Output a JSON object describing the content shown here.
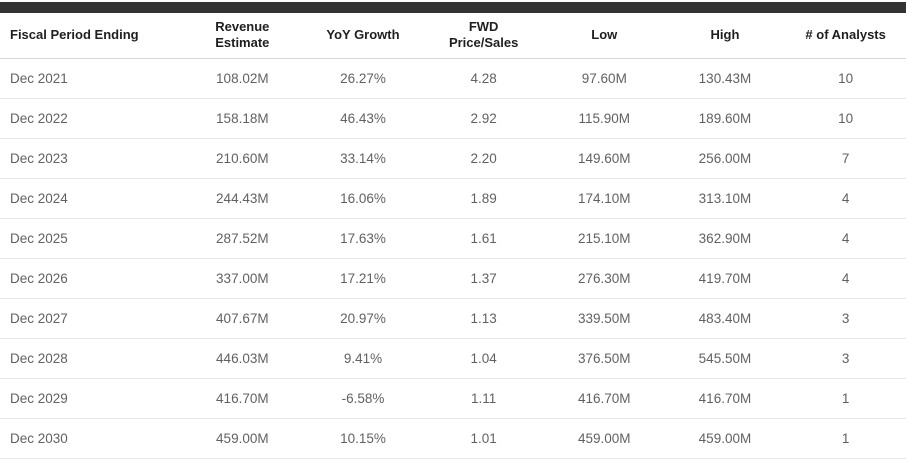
{
  "colors": {
    "top_bar": "#333333",
    "background": "#ffffff",
    "header_text": "#1f1f1f",
    "cell_text": "#616161",
    "header_border": "#d6d6d6",
    "row_border": "#e7e7e7"
  },
  "table": {
    "columns": [
      {
        "id": "fiscal_period_ending",
        "label": "Fiscal Period Ending",
        "align": "left"
      },
      {
        "id": "revenue_estimate",
        "label": "Revenue\nEstimate",
        "align": "center"
      },
      {
        "id": "yoy_growth",
        "label": "YoY Growth",
        "align": "center"
      },
      {
        "id": "fwd_price_sales",
        "label": "FWD\nPrice/Sales",
        "align": "center"
      },
      {
        "id": "low",
        "label": "Low",
        "align": "center"
      },
      {
        "id": "high",
        "label": "High",
        "align": "center"
      },
      {
        "id": "num_analysts",
        "label": "# of Analysts",
        "align": "center"
      }
    ],
    "rows": [
      [
        "Dec 2021",
        "108.02M",
        "26.27%",
        "4.28",
        "97.60M",
        "130.43M",
        "10"
      ],
      [
        "Dec 2022",
        "158.18M",
        "46.43%",
        "2.92",
        "115.90M",
        "189.60M",
        "10"
      ],
      [
        "Dec 2023",
        "210.60M",
        "33.14%",
        "2.20",
        "149.60M",
        "256.00M",
        "7"
      ],
      [
        "Dec 2024",
        "244.43M",
        "16.06%",
        "1.89",
        "174.10M",
        "313.10M",
        "4"
      ],
      [
        "Dec 2025",
        "287.52M",
        "17.63%",
        "1.61",
        "215.10M",
        "362.90M",
        "4"
      ],
      [
        "Dec 2026",
        "337.00M",
        "17.21%",
        "1.37",
        "276.30M",
        "419.70M",
        "4"
      ],
      [
        "Dec 2027",
        "407.67M",
        "20.97%",
        "1.13",
        "339.50M",
        "483.40M",
        "3"
      ],
      [
        "Dec 2028",
        "446.03M",
        "9.41%",
        "1.04",
        "376.50M",
        "545.50M",
        "3"
      ],
      [
        "Dec 2029",
        "416.70M",
        "-6.58%",
        "1.11",
        "416.70M",
        "416.70M",
        "1"
      ],
      [
        "Dec 2030",
        "459.00M",
        "10.15%",
        "1.01",
        "459.00M",
        "459.00M",
        "1"
      ]
    ]
  }
}
